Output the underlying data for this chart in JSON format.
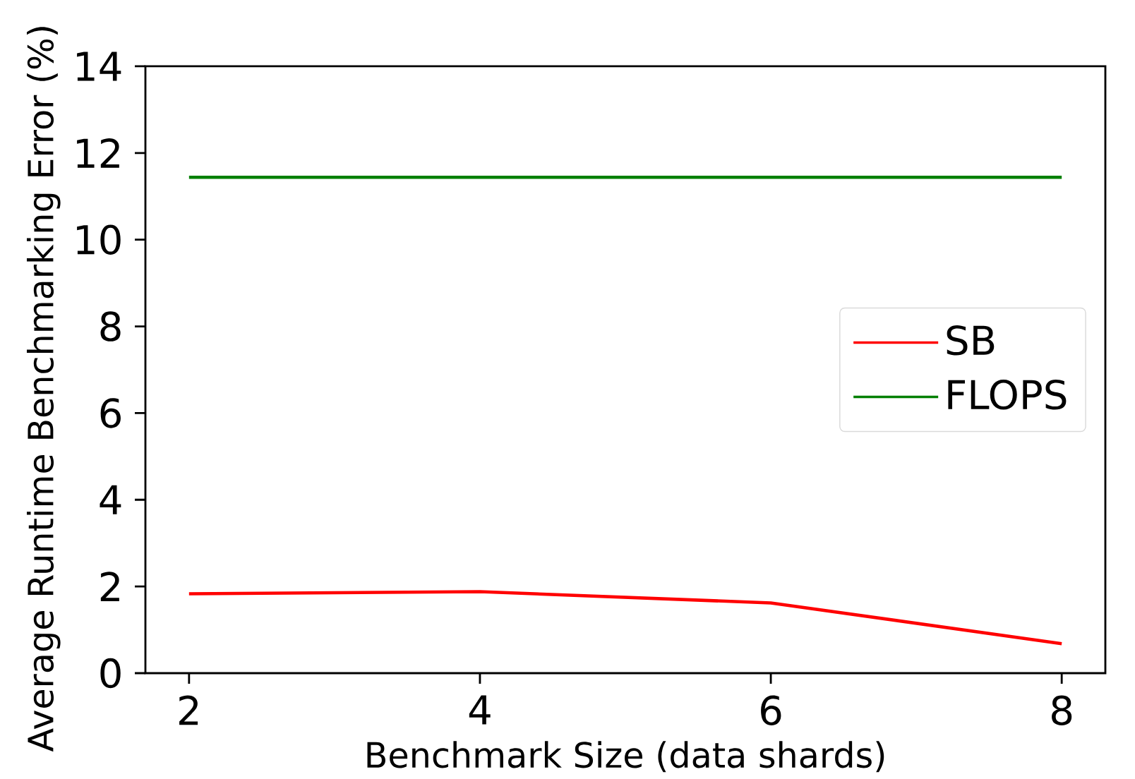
{
  "chart_data": {
    "type": "line",
    "xlabel": "Benchmark Size (data shards)",
    "ylabel": "Average Runtime Benchmarking Error (%)",
    "x": [
      2,
      4,
      6,
      8
    ],
    "series": [
      {
        "name": "SB",
        "color": "#ff0000",
        "values": [
          1.83,
          1.88,
          1.62,
          0.68
        ]
      },
      {
        "name": "FLOPS",
        "color": "#008000",
        "values": [
          11.44,
          11.44,
          11.44,
          11.44
        ]
      }
    ],
    "xlim": [
      1.7,
      8.3
    ],
    "ylim": [
      0,
      14
    ],
    "xticks": [
      2,
      4,
      6,
      8
    ],
    "yticks": [
      0,
      2,
      4,
      6,
      8,
      10,
      12,
      14
    ],
    "legend": "center right"
  }
}
